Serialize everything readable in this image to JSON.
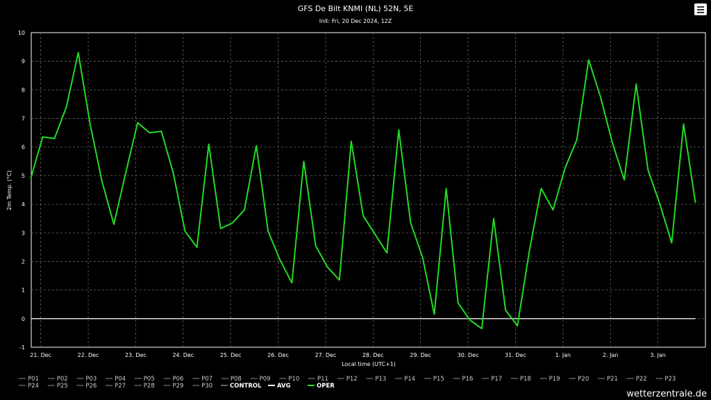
{
  "chart_data": {
    "type": "line",
    "title": "GFS De Bilt KNMI (NL) 52N, 5E",
    "subtitle": "Init: Fri, 20 Dec 2024, 12Z",
    "xlabel": "Local time (UTC+1)",
    "ylabel": "2m Temp. (°C)",
    "ylim": [
      -1,
      10
    ],
    "yticks": [
      -1,
      0,
      1,
      2,
      3,
      4,
      5,
      6,
      7,
      8,
      9,
      10
    ],
    "xlim": [
      20.8,
      35.0
    ],
    "xticks": [
      {
        "x": 21,
        "label": "21. Dec"
      },
      {
        "x": 22,
        "label": "22. Dec"
      },
      {
        "x": 23,
        "label": "23. Dec"
      },
      {
        "x": 24,
        "label": "24. Dec"
      },
      {
        "x": 25,
        "label": "25. Dec"
      },
      {
        "x": 26,
        "label": "26. Dec"
      },
      {
        "x": 27,
        "label": "27. Dec"
      },
      {
        "x": 28,
        "label": "28. Dec"
      },
      {
        "x": 29,
        "label": "29. Dec"
      },
      {
        "x": 30,
        "label": "30. Dec"
      },
      {
        "x": 31,
        "label": "31. Dec"
      },
      {
        "x": 32,
        "label": "1. Jan"
      },
      {
        "x": 33,
        "label": "2. Jan"
      },
      {
        "x": 34,
        "label": "3. Jan"
      }
    ],
    "grid": true,
    "legend_position": "bottom",
    "series": [
      {
        "name": "OPER",
        "color": "#22dd22",
        "x": [
          20.79,
          21.04,
          21.29,
          21.54,
          21.79,
          22.04,
          22.29,
          22.54,
          22.79,
          23.04,
          23.29,
          23.54,
          23.79,
          24.04,
          24.29,
          24.54,
          24.79,
          25.04,
          25.29,
          25.54,
          25.79,
          26.04,
          26.29,
          26.54,
          26.79,
          27.04,
          27.29,
          27.54,
          27.79,
          28.04,
          28.29,
          28.54,
          28.79,
          29.04,
          29.29,
          29.54,
          29.79,
          30.04,
          30.29,
          30.54,
          30.79,
          31.04,
          31.29,
          31.54,
          31.79,
          32.04,
          32.29,
          32.54,
          32.79,
          33.04,
          33.29,
          33.54,
          33.79,
          34.04,
          34.29,
          34.54,
          34.79
        ],
        "values": [
          4.9,
          6.35,
          6.3,
          7.4,
          9.3,
          6.8,
          4.8,
          3.3,
          5.1,
          6.85,
          6.5,
          6.55,
          5.1,
          3.05,
          2.5,
          6.1,
          3.15,
          3.35,
          3.8,
          6.05,
          3.05,
          2.05,
          1.25,
          5.5,
          2.55,
          1.8,
          1.35,
          6.2,
          3.6,
          2.95,
          2.3,
          6.6,
          3.35,
          2.15,
          0.15,
          4.55,
          0.55,
          -0.05,
          -0.35,
          3.5,
          0.3,
          -0.25,
          2.35,
          4.55,
          3.8,
          5.25,
          6.25,
          9.05,
          7.75,
          6.15,
          4.85,
          8.2,
          5.2,
          4.0,
          2.65,
          6.8,
          4.05
        ]
      },
      {
        "name": "CONTROL",
        "color": "#cccccc",
        "x": [
          20.79,
          34.79
        ],
        "values": [
          0,
          0
        ]
      }
    ]
  },
  "legend": [
    {
      "label": "P01",
      "color": "#777777"
    },
    {
      "label": "P02",
      "color": "#777777"
    },
    {
      "label": "P03",
      "color": "#777777"
    },
    {
      "label": "P04",
      "color": "#777777"
    },
    {
      "label": "P05",
      "color": "#777777"
    },
    {
      "label": "P06",
      "color": "#777777"
    },
    {
      "label": "P07",
      "color": "#777777"
    },
    {
      "label": "P08",
      "color": "#777777"
    },
    {
      "label": "P09",
      "color": "#777777"
    },
    {
      "label": "P10",
      "color": "#777777"
    },
    {
      "label": "P11",
      "color": "#777777"
    },
    {
      "label": "P12",
      "color": "#777777"
    },
    {
      "label": "P13",
      "color": "#777777"
    },
    {
      "label": "P14",
      "color": "#777777"
    },
    {
      "label": "P15",
      "color": "#777777"
    },
    {
      "label": "P16",
      "color": "#777777"
    },
    {
      "label": "P17",
      "color": "#777777"
    },
    {
      "label": "P18",
      "color": "#777777"
    },
    {
      "label": "P19",
      "color": "#777777"
    },
    {
      "label": "P20",
      "color": "#777777"
    },
    {
      "label": "P21",
      "color": "#777777"
    },
    {
      "label": "P22",
      "color": "#777777"
    },
    {
      "label": "P23",
      "color": "#777777"
    },
    {
      "label": "P24",
      "color": "#777777"
    },
    {
      "label": "P25",
      "color": "#777777"
    },
    {
      "label": "P26",
      "color": "#777777"
    },
    {
      "label": "P27",
      "color": "#777777"
    },
    {
      "label": "P28",
      "color": "#777777"
    },
    {
      "label": "P29",
      "color": "#777777"
    },
    {
      "label": "P30",
      "color": "#777777"
    },
    {
      "label": "CONTROL",
      "color": "#aaaaaa"
    },
    {
      "label": "AVG",
      "color": "#ffffff"
    },
    {
      "label": "OPER",
      "color": "#22dd22"
    }
  ],
  "credit": "wetterzentrale.de",
  "menu_icon": "hamburger-menu-icon"
}
